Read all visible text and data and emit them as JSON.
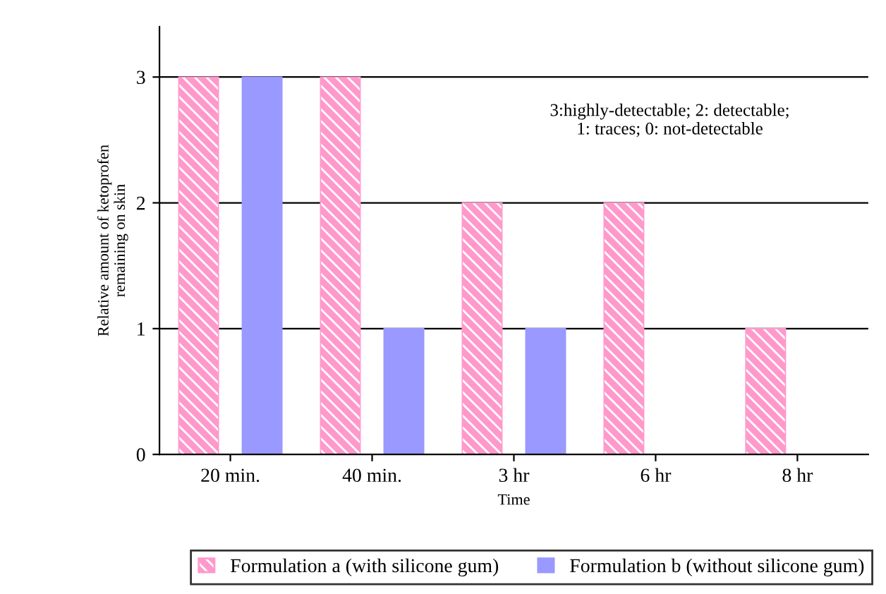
{
  "chart_data": {
    "type": "bar",
    "xlabel": "Time",
    "ylabel": "Relative amount of ketoprofen\nremaining on skin",
    "categories": [
      "20 min.",
      "40 min.",
      "3 hr",
      "6 hr",
      "8 hr"
    ],
    "series": [
      {
        "name": "Formulation a (with silicone gum)",
        "color": "#ff99cc",
        "values": [
          3,
          3,
          2,
          2,
          1
        ]
      },
      {
        "name": "Formulation b (without silicone gum)",
        "color": "#9999ff",
        "values": [
          3,
          1,
          1,
          0,
          0
        ]
      }
    ],
    "ylim": [
      0,
      3.4
    ],
    "yticks": [
      0,
      1,
      2,
      3
    ],
    "grid": "y",
    "legend": "bottom",
    "annotations": [
      "3:highly-detectable; 2: detectable;\n1: traces; 0: not-detectable"
    ]
  }
}
